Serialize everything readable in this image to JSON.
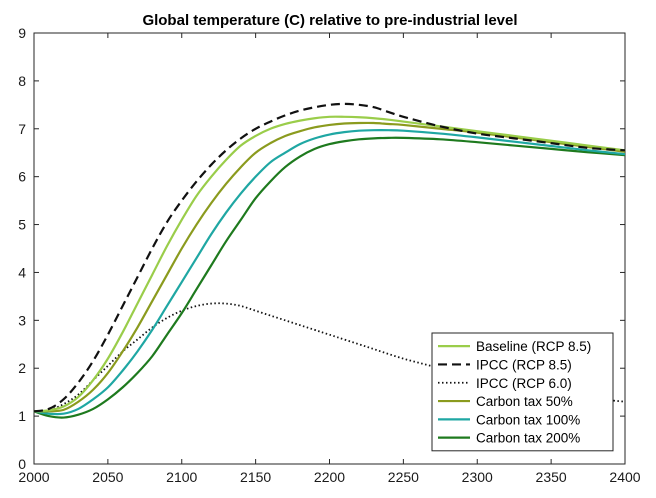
{
  "chart_data": {
    "type": "line",
    "title": "Global temperature (C) relative to pre-industrial level",
    "xlabel": "",
    "ylabel": "",
    "xlim": [
      2000,
      2400
    ],
    "ylim": [
      0,
      9
    ],
    "xticks": [
      2000,
      2050,
      2100,
      2150,
      2200,
      2250,
      2300,
      2350,
      2400
    ],
    "yticks": [
      0,
      1,
      2,
      3,
      4,
      5,
      6,
      7,
      8,
      9
    ],
    "grid": false,
    "legend_position": "bottom-right",
    "series": [
      {
        "name": "Baseline (RCP 8.5)",
        "color": "#9ACD4A",
        "dash": "solid",
        "x": [
          2000,
          2010,
          2020,
          2030,
          2040,
          2050,
          2060,
          2070,
          2080,
          2090,
          2100,
          2110,
          2120,
          2130,
          2140,
          2150,
          2160,
          2170,
          2180,
          2190,
          2200,
          2210,
          2220,
          2230,
          2240,
          2250,
          2275,
          2300,
          2325,
          2350,
          2375,
          2400
        ],
        "y": [
          1.1,
          1.12,
          1.2,
          1.4,
          1.75,
          2.2,
          2.75,
          3.35,
          3.95,
          4.55,
          5.1,
          5.6,
          6.0,
          6.35,
          6.65,
          6.85,
          7.0,
          7.1,
          7.17,
          7.22,
          7.25,
          7.25,
          7.24,
          7.22,
          7.19,
          7.15,
          7.05,
          6.95,
          6.85,
          6.75,
          6.65,
          6.55
        ]
      },
      {
        "name": "IPCC (RCP 8.5)",
        "color": "#111111",
        "dash": "dashed",
        "x": [
          2000,
          2010,
          2020,
          2030,
          2040,
          2050,
          2060,
          2070,
          2080,
          2090,
          2100,
          2110,
          2120,
          2130,
          2140,
          2150,
          2160,
          2170,
          2180,
          2190,
          2200,
          2210,
          2220,
          2230,
          2240,
          2250,
          2275,
          2300,
          2325,
          2350,
          2375,
          2400
        ],
        "y": [
          1.1,
          1.15,
          1.35,
          1.7,
          2.15,
          2.7,
          3.3,
          3.9,
          4.5,
          5.05,
          5.5,
          5.9,
          6.25,
          6.55,
          6.8,
          7.0,
          7.15,
          7.28,
          7.38,
          7.45,
          7.5,
          7.52,
          7.5,
          7.45,
          7.35,
          7.25,
          7.05,
          6.9,
          6.8,
          6.7,
          6.6,
          6.55
        ]
      },
      {
        "name": "IPCC (RCP 6.0)",
        "color": "#111111",
        "dash": "dotted",
        "x": [
          2000,
          2010,
          2020,
          2030,
          2040,
          2050,
          2060,
          2070,
          2080,
          2090,
          2100,
          2110,
          2120,
          2130,
          2140,
          2150,
          2160,
          2170,
          2180,
          2190,
          2200,
          2225,
          2250,
          2275,
          2300,
          2325,
          2350,
          2375,
          2400
        ],
        "y": [
          1.1,
          1.12,
          1.25,
          1.45,
          1.75,
          2.05,
          2.35,
          2.6,
          2.85,
          3.05,
          3.2,
          3.3,
          3.35,
          3.35,
          3.3,
          3.2,
          3.1,
          3.0,
          2.9,
          2.8,
          2.7,
          2.45,
          2.2,
          2.0,
          1.8,
          1.65,
          1.5,
          1.38,
          1.3
        ]
      },
      {
        "name": "Carbon tax 50%",
        "color": "#8B9B1E",
        "dash": "solid",
        "x": [
          2000,
          2010,
          2020,
          2030,
          2040,
          2050,
          2060,
          2070,
          2080,
          2090,
          2100,
          2110,
          2120,
          2130,
          2140,
          2150,
          2160,
          2170,
          2180,
          2190,
          2200,
          2210,
          2220,
          2230,
          2240,
          2250,
          2275,
          2300,
          2325,
          2350,
          2375,
          2400
        ],
        "y": [
          1.1,
          1.1,
          1.13,
          1.3,
          1.55,
          1.9,
          2.35,
          2.85,
          3.4,
          3.95,
          4.5,
          5.0,
          5.45,
          5.85,
          6.2,
          6.5,
          6.7,
          6.85,
          6.95,
          7.03,
          7.08,
          7.11,
          7.12,
          7.12,
          7.1,
          7.08,
          7.0,
          6.92,
          6.82,
          6.72,
          6.62,
          6.52
        ]
      },
      {
        "name": "Carbon tax 100%",
        "color": "#1FA7A3",
        "dash": "solid",
        "x": [
          2000,
          2010,
          2020,
          2030,
          2040,
          2050,
          2060,
          2070,
          2080,
          2090,
          2100,
          2110,
          2120,
          2130,
          2140,
          2150,
          2160,
          2170,
          2180,
          2190,
          2200,
          2210,
          2220,
          2230,
          2240,
          2250,
          2275,
          2300,
          2325,
          2350,
          2375,
          2400
        ],
        "y": [
          1.1,
          1.05,
          1.05,
          1.15,
          1.35,
          1.6,
          1.95,
          2.35,
          2.8,
          3.3,
          3.8,
          4.3,
          4.8,
          5.25,
          5.65,
          6.0,
          6.3,
          6.5,
          6.68,
          6.8,
          6.88,
          6.93,
          6.96,
          6.97,
          6.97,
          6.96,
          6.9,
          6.82,
          6.73,
          6.64,
          6.55,
          6.47
        ]
      },
      {
        "name": "Carbon tax 200%",
        "color": "#1E7A1E",
        "dash": "solid",
        "x": [
          2000,
          2010,
          2020,
          2030,
          2040,
          2050,
          2060,
          2070,
          2080,
          2090,
          2100,
          2110,
          2120,
          2130,
          2140,
          2150,
          2160,
          2170,
          2180,
          2190,
          2200,
          2210,
          2220,
          2230,
          2240,
          2250,
          2275,
          2300,
          2325,
          2350,
          2375,
          2400
        ],
        "y": [
          1.1,
          1.0,
          0.97,
          1.03,
          1.15,
          1.35,
          1.6,
          1.9,
          2.25,
          2.7,
          3.15,
          3.65,
          4.15,
          4.65,
          5.1,
          5.55,
          5.9,
          6.2,
          6.42,
          6.58,
          6.68,
          6.74,
          6.78,
          6.8,
          6.81,
          6.81,
          6.78,
          6.72,
          6.65,
          6.58,
          6.51,
          6.45
        ]
      }
    ]
  }
}
